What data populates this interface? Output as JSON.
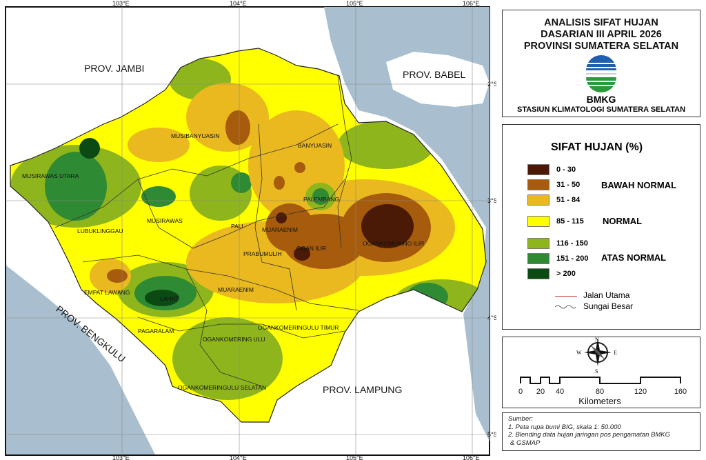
{
  "title": {
    "lines": [
      "ANALISIS SIFAT HUJAN",
      "DASARIAN III APRIL 2026",
      "PROVINSI SUMATERA SELATAN"
    ],
    "logo_text": "BMKG",
    "station": "STASIUN KLIMATOLOGI SUMATERA SELATAN"
  },
  "legend": {
    "title": "SIFAT HUJAN (%)",
    "classes": [
      {
        "range": "0 - 30",
        "color": "#4a1a06"
      },
      {
        "range": "31 - 50",
        "color": "#a65c0c"
      },
      {
        "range": "51 - 84",
        "color": "#eab91f"
      },
      {
        "range": "85 - 115",
        "color": "#ffff00"
      },
      {
        "range": "116 - 150",
        "color": "#8fb51c"
      },
      {
        "range": "151 - 200",
        "color": "#2f8a34"
      },
      {
        "range": "> 200",
        "color": "#0c4a14"
      }
    ],
    "categories": [
      "BAWAH NORMAL",
      "NORMAL",
      "ATAS NORMAL"
    ],
    "lines": [
      {
        "label": "Jalan Utama",
        "color": "#c0392b"
      },
      {
        "label": "Sungai Besar",
        "color": "#666666"
      }
    ]
  },
  "compass": {
    "n": "N",
    "s": "S",
    "e": "E",
    "w": "W"
  },
  "scale_bar": {
    "ticks": [
      "0",
      "20",
      "40",
      "80",
      "120",
      "160"
    ],
    "unit": "Kilometers"
  },
  "source": {
    "heading": "Sumber:",
    "items": [
      "1. Peta rupa bumi BIG, skala 1: 50.000",
      "2. Blending data hujan jaringan pos pengamatan BMKG",
      "& GSMAP"
    ]
  },
  "map": {
    "lon_ticks": [
      "103°E",
      "104°E",
      "105°E",
      "106°E"
    ],
    "lat_ticks": [
      "2°S",
      "3°S",
      "4°S",
      "5°S"
    ],
    "neighbors": [
      "PROV. JAMBI",
      "PROV. BABEL",
      "PROV. BENGKULU",
      "PROV. LAMPUNG"
    ],
    "regions": [
      "MUSIRAWAS UTARA",
      "MUSIBANYUASIN",
      "BANYUASIN",
      "PALEMBANG",
      "LUBUKLINGGAU",
      "MUSIRAWAS",
      "PALI",
      "MUARAENIM",
      "OGAN ILIR",
      "PRABUMULIH",
      "OGANKOMERING ILIR",
      "EMPAT LAWANG",
      "LAHAT",
      "MUARAENIM",
      "OGANKOMERINGULU TIMUR",
      "PAGARALAM",
      "OGANKOMERING ULU",
      "OGANKOMERINGULU SELATAN"
    ],
    "sea_color": "#a9bfcf"
  }
}
